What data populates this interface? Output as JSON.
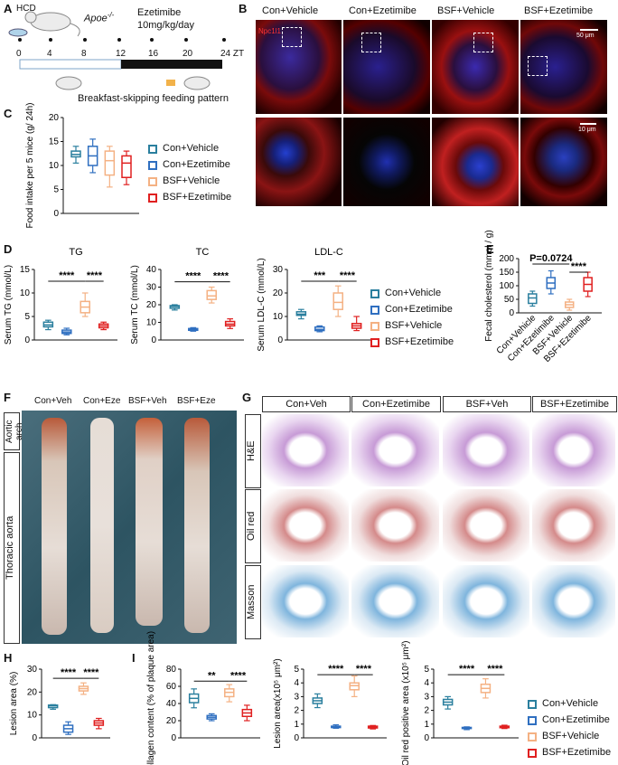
{
  "colors": {
    "con_vehicle": "#2a7f9e",
    "con_ezetimibe": "#2f6fc0",
    "bsf_vehicle": "#f4b183",
    "bsf_ezetimibe": "#e02020"
  },
  "panelA": {
    "letter": "A",
    "hcd": "HCD",
    "apoe": "Apoe",
    "apoe_sup": "-/-",
    "drug": "Ezetimibe",
    "dose": "10mg/kg/day",
    "ticks": [
      "0",
      "4",
      "8",
      "12",
      "16",
      "20",
      "24 ZT"
    ],
    "caption": "Breakfast-skipping feeding pattern"
  },
  "panelB": {
    "letter": "B",
    "titles": [
      "Con+Vehicle",
      "Con+Ezetimibe",
      "BSF+Vehicle",
      "BSF+Ezetimibe"
    ],
    "stain": "Npc1l1",
    "scale1": "50 μm",
    "scale2": "10 μm"
  },
  "panelF": {
    "letter": "F",
    "titles": [
      "Con+Veh",
      "Con+Eze",
      "BSF+Veh",
      "BSF+Eze"
    ],
    "label_arch": "Aortic arch",
    "label_thoracic": "Thoracic aorta"
  },
  "panelG": {
    "letter": "G",
    "titles": [
      "Con+Veh",
      "Con+Ezetimibe",
      "BSF+Veh",
      "BSF+Ezetimibe"
    ],
    "rows": [
      "H&E",
      "Oil red",
      "Masson"
    ]
  },
  "letters": {
    "C": "C",
    "D": "D",
    "E": "E",
    "H": "H",
    "I": "I"
  },
  "legend_cd": [
    "Con+Vehicle",
    "Con+Ezetimibe",
    "BSF+Vehicle",
    "BSF+Ezetimibe"
  ],
  "legend_i": [
    "Con+Vehicle",
    "Con+Ezetimibe",
    "BSF+Vehicle",
    "BSF+Ezetimibe"
  ],
  "e_xlabels": [
    "Con+Vehicle",
    "Con+Ezetimibe",
    "BSF+Vehicle",
    "BSF+Ezetimibe"
  ],
  "chart_data": [
    {
      "id": "C",
      "type": "box",
      "ylabel": "Food intake per 5 mice (g/ 24h)",
      "ylim": [
        0,
        20
      ],
      "yticks": [
        "0",
        "5",
        "10",
        "15",
        "20"
      ],
      "groups": [
        {
          "name": "Con+Vehicle",
          "min": 10.5,
          "q1": 11.8,
          "median": 12.3,
          "q3": 13,
          "max": 14
        },
        {
          "name": "Con+Ezetimibe",
          "min": 8.5,
          "q1": 10,
          "median": 12,
          "q3": 14,
          "max": 15.5
        },
        {
          "name": "BSF+Vehicle",
          "min": 5.5,
          "q1": 8,
          "median": 11,
          "q3": 13,
          "max": 14
        },
        {
          "name": "BSF+Ezetimibe",
          "min": 6,
          "q1": 7.5,
          "median": 10.5,
          "q3": 12,
          "max": 13
        }
      ],
      "sig": []
    },
    {
      "id": "D-TG",
      "type": "box",
      "title": "TG",
      "ylabel": "Serum TG (mmol/L)",
      "ylim": [
        0,
        15
      ],
      "yticks": [
        "0",
        "5",
        "10",
        "15"
      ],
      "groups": [
        {
          "name": "Con+Vehicle",
          "min": 2.2,
          "q1": 2.8,
          "median": 3.2,
          "q3": 3.8,
          "max": 4.2
        },
        {
          "name": "Con+Ezetimibe",
          "min": 1.1,
          "q1": 1.4,
          "median": 1.7,
          "q3": 2.1,
          "max": 2.5
        },
        {
          "name": "BSF+Vehicle",
          "min": 5,
          "q1": 5.8,
          "median": 7,
          "q3": 8.2,
          "max": 10
        },
        {
          "name": "BSF+Ezetimibe",
          "min": 2.2,
          "q1": 2.6,
          "median": 3,
          "q3": 3.4,
          "max": 3.8
        }
      ],
      "sig": [
        {
          "label": "****",
          "from": 0,
          "to": 2,
          "y": 12.5
        },
        {
          "label": "****",
          "from": 2,
          "to": 3,
          "y": 12.5
        }
      ]
    },
    {
      "id": "D-TC",
      "type": "box",
      "title": "TC",
      "ylabel": "Serum TC (mmol/L)",
      "ylim": [
        0,
        40
      ],
      "yticks": [
        "0",
        "10",
        "20",
        "30",
        "40"
      ],
      "groups": [
        {
          "name": "Con+Vehicle",
          "min": 17,
          "q1": 18,
          "median": 19,
          "q3": 19.5,
          "max": 20
        },
        {
          "name": "Con+Ezetimibe",
          "min": 5,
          "q1": 5.5,
          "median": 6,
          "q3": 6.5,
          "max": 7
        },
        {
          "name": "BSF+Vehicle",
          "min": 21,
          "q1": 23,
          "median": 25,
          "q3": 28,
          "max": 30
        },
        {
          "name": "BSF+Ezetimibe",
          "min": 6.5,
          "q1": 8,
          "median": 9,
          "q3": 10.5,
          "max": 12
        }
      ],
      "sig": [
        {
          "label": "****",
          "from": 0,
          "to": 2,
          "y": 33
        },
        {
          "label": "****",
          "from": 2,
          "to": 3,
          "y": 33
        }
      ]
    },
    {
      "id": "D-LDL",
      "type": "box",
      "title": "LDL-C",
      "ylabel": "Serum LDL-C (mmol/L)",
      "ylim": [
        0,
        30
      ],
      "yticks": [
        "0",
        "10",
        "20",
        "30"
      ],
      "groups": [
        {
          "name": "Con+Vehicle",
          "min": 9,
          "q1": 10.5,
          "median": 11,
          "q3": 12,
          "max": 13
        },
        {
          "name": "Con+Ezetimibe",
          "min": 3.5,
          "q1": 4,
          "median": 4.5,
          "q3": 5.5,
          "max": 6
        },
        {
          "name": "BSF+Vehicle",
          "min": 10,
          "q1": 13,
          "median": 16,
          "q3": 20,
          "max": 23
        },
        {
          "name": "BSF+Ezetimibe",
          "min": 4,
          "q1": 5,
          "median": 6,
          "q3": 7,
          "max": 10
        }
      ],
      "sig": [
        {
          "label": "***",
          "from": 0,
          "to": 2,
          "y": 25
        },
        {
          "label": "****",
          "from": 2,
          "to": 3,
          "y": 25
        }
      ]
    },
    {
      "id": "E",
      "type": "box",
      "ylabel": "Fecal cholesterol (mmol / g)",
      "ylim": [
        0,
        200
      ],
      "yticks": [
        "0",
        "50",
        "100",
        "150",
        "200"
      ],
      "groups": [
        {
          "name": "Con+Vehicle",
          "min": 25,
          "q1": 35,
          "median": 55,
          "q3": 70,
          "max": 80
        },
        {
          "name": "Con+Ezetimibe",
          "min": 70,
          "q1": 90,
          "median": 110,
          "q3": 130,
          "max": 155
        },
        {
          "name": "BSF+Vehicle",
          "min": 10,
          "q1": 20,
          "median": 30,
          "q3": 40,
          "max": 50
        },
        {
          "name": "BSF+Ezetimibe",
          "min": 60,
          "q1": 80,
          "median": 105,
          "q3": 130,
          "max": 150
        }
      ],
      "sig": [
        {
          "label": "P=0.0724",
          "from": 0,
          "to": 2,
          "y": 180
        },
        {
          "label": "****",
          "from": 2,
          "to": 3,
          "y": 150
        }
      ]
    },
    {
      "id": "H",
      "type": "box",
      "ylabel": "Lesion area (%)",
      "ylim": [
        0,
        30
      ],
      "yticks": [
        "0",
        "10",
        "20",
        "30"
      ],
      "groups": [
        {
          "name": "Con+Vehicle",
          "min": 12.5,
          "q1": 13.2,
          "median": 14,
          "q3": 14.3,
          "max": 14.5
        },
        {
          "name": "Con+Ezetimibe",
          "min": 1.5,
          "q1": 2.5,
          "median": 4,
          "q3": 5.5,
          "max": 7
        },
        {
          "name": "BSF+Vehicle",
          "min": 19,
          "q1": 20.5,
          "median": 21.5,
          "q3": 22.5,
          "max": 24
        },
        {
          "name": "BSF+Ezetimibe",
          "min": 4,
          "q1": 5.5,
          "median": 6.5,
          "q3": 7.5,
          "max": 8.5
        }
      ],
      "sig": [
        {
          "label": "****",
          "from": 0,
          "to": 2,
          "y": 26
        },
        {
          "label": "****",
          "from": 2,
          "to": 3,
          "y": 26
        }
      ]
    },
    {
      "id": "I-collagen",
      "type": "box",
      "ylabel": "Collagen content (% of plaque area)",
      "ylim": [
        0,
        80
      ],
      "yticks": [
        "0",
        "20",
        "40",
        "60",
        "80"
      ],
      "groups": [
        {
          "name": "Con+Vehicle",
          "min": 35,
          "q1": 41,
          "median": 46,
          "q3": 51,
          "max": 57
        },
        {
          "name": "Con+Ezetimibe",
          "min": 20,
          "q1": 22,
          "median": 24,
          "q3": 26,
          "max": 28
        },
        {
          "name": "BSF+Vehicle",
          "min": 42,
          "q1": 48,
          "median": 53,
          "q3": 57,
          "max": 62
        },
        {
          "name": "BSF+Ezetimibe",
          "min": 20,
          "q1": 25,
          "median": 29,
          "q3": 33,
          "max": 38
        }
      ],
      "sig": [
        {
          "label": "**",
          "from": 0,
          "to": 2,
          "y": 66
        },
        {
          "label": "****",
          "from": 2,
          "to": 3,
          "y": 66
        }
      ]
    },
    {
      "id": "I-lesion",
      "type": "box",
      "ylabel": "Lesion area(x10⁵ μm²)",
      "ylim": [
        0,
        5
      ],
      "yticks": [
        "0",
        "1",
        "2",
        "3",
        "4",
        "5"
      ],
      "groups": [
        {
          "name": "Con+Vehicle",
          "min": 2.2,
          "q1": 2.5,
          "median": 2.7,
          "q3": 2.9,
          "max": 3.2
        },
        {
          "name": "Con+Ezetimibe",
          "min": 0.7,
          "q1": 0.75,
          "median": 0.8,
          "q3": 0.85,
          "max": 0.95
        },
        {
          "name": "BSF+Vehicle",
          "min": 3,
          "q1": 3.5,
          "median": 3.8,
          "q3": 4,
          "max": 4.5
        },
        {
          "name": "BSF+Ezetimibe",
          "min": 0.65,
          "q1": 0.72,
          "median": 0.8,
          "q3": 0.85,
          "max": 0.9
        }
      ],
      "sig": [
        {
          "label": "****",
          "from": 0,
          "to": 2,
          "y": 4.6
        },
        {
          "label": "****",
          "from": 2,
          "to": 3,
          "y": 4.6
        }
      ]
    },
    {
      "id": "I-oilred",
      "type": "box",
      "ylabel": "Oil red positive area (x10⁵ μm²)",
      "ylim": [
        0,
        5
      ],
      "yticks": [
        "0",
        "1",
        "2",
        "3",
        "4",
        "5"
      ],
      "groups": [
        {
          "name": "Con+Vehicle",
          "min": 2.1,
          "q1": 2.4,
          "median": 2.6,
          "q3": 2.8,
          "max": 3.0
        },
        {
          "name": "Con+Ezetimibe",
          "min": 0.6,
          "q1": 0.68,
          "median": 0.72,
          "q3": 0.76,
          "max": 0.8
        },
        {
          "name": "BSF+Vehicle",
          "min": 2.9,
          "q1": 3.3,
          "median": 3.6,
          "q3": 3.9,
          "max": 4.3
        },
        {
          "name": "BSF+Ezetimibe",
          "min": 0.68,
          "q1": 0.74,
          "median": 0.8,
          "q3": 0.85,
          "max": 0.92
        }
      ],
      "sig": [
        {
          "label": "****",
          "from": 0,
          "to": 2,
          "y": 4.6
        },
        {
          "label": "****",
          "from": 2,
          "to": 3,
          "y": 4.6
        }
      ]
    }
  ]
}
